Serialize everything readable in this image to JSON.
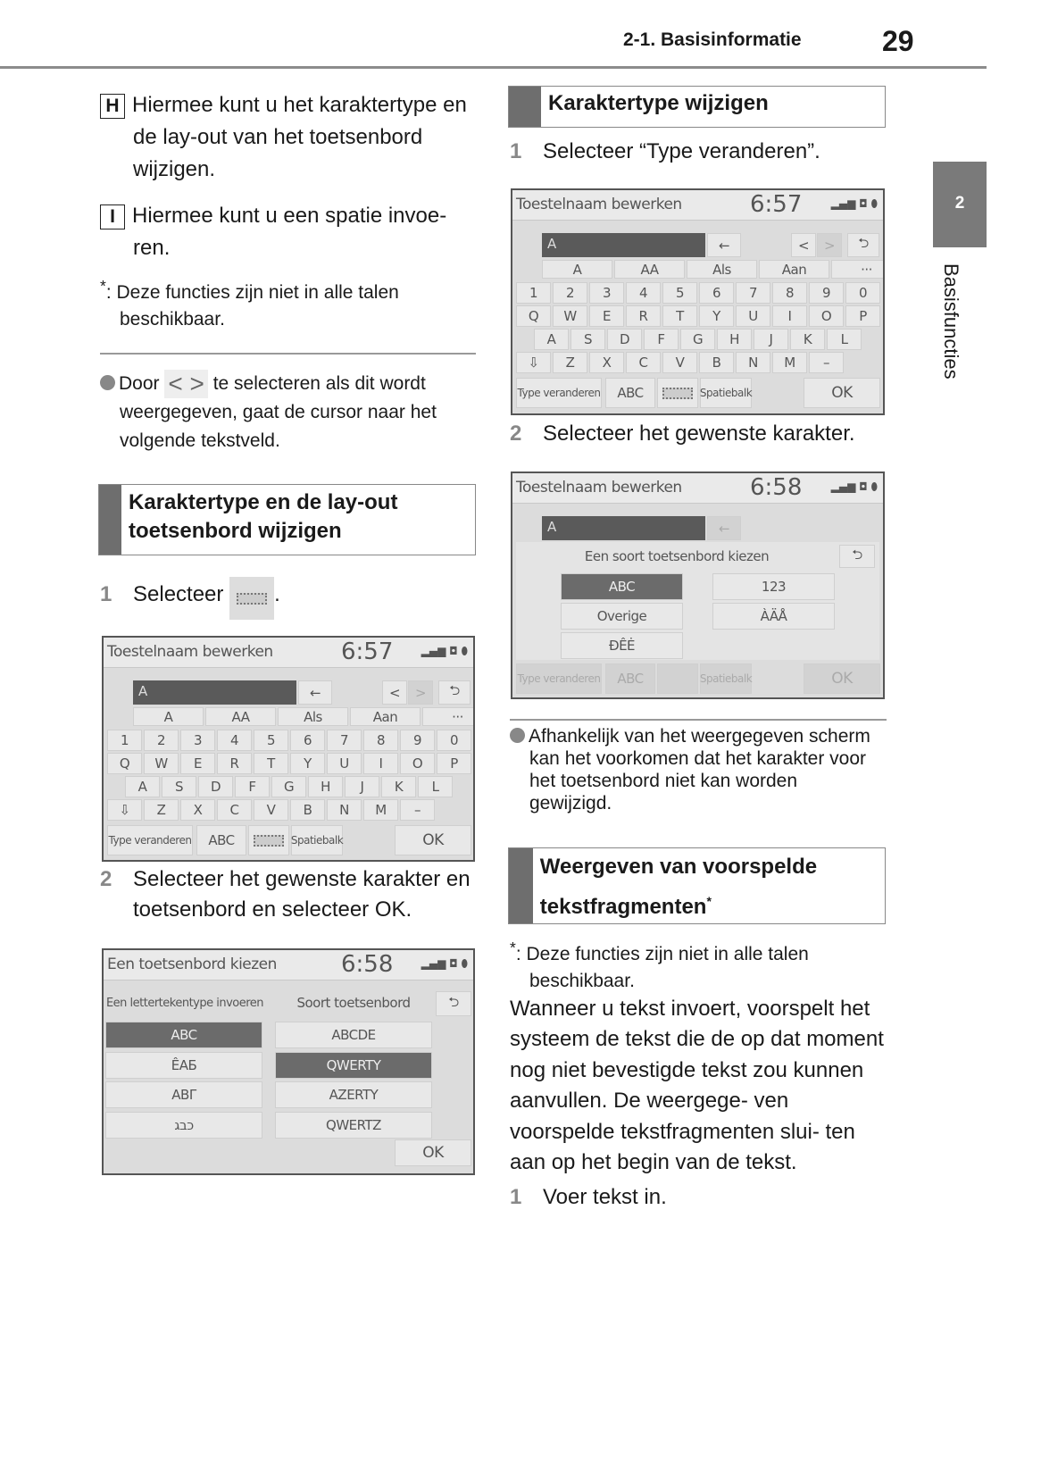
{
  "header": {
    "section": "2-1. Basisinformatie",
    "page_number": "29"
  },
  "side_tab": {
    "number": "2",
    "label": "Basisfuncties"
  },
  "left": {
    "item_h": {
      "key": "H",
      "text": "Hiermee kunt u het karaktertype en de lay-out van het toetsenbord wijzigen."
    },
    "item_i": {
      "key": "I",
      "text": "Hiermee kunt u een spatie invoe- ren."
    },
    "footnote": {
      "mark": "*",
      "text": "Deze functies zijn niet in alle talen beschikbaar."
    },
    "bullet": {
      "before": "Door",
      "after": "te selecteren als dit wordt",
      "rest": "weergegeven, gaat de cursor naar het volgende tekstveld."
    },
    "heading": "Karaktertype en de lay-out toetsenbord wijzigen",
    "step1": {
      "num": "1",
      "text": "Selecteer",
      "end": "."
    },
    "step2": {
      "num": "2",
      "text": "Selecteer het gewenste karakter en toetsenbord en selecteer OK."
    }
  },
  "right": {
    "heading1": "Karaktertype wijzigen",
    "step1": {
      "num": "1",
      "text": "Selecteer “Type veranderen”."
    },
    "step2": {
      "num": "2",
      "text": "Selecteer het gewenste karakter."
    },
    "bullet": "Afhankelijk van het weergegeven scherm kan het voorkomen dat het karakter voor het toetsenbord niet kan worden gewijzigd.",
    "heading2": "Weergeven van voorspelde tekstfragmenten",
    "heading2_mark": "*",
    "footnote": {
      "mark": "*",
      "text": "Deze functies zijn niet in alle talen beschikbaar."
    },
    "paragraph": "Wanneer u tekst invoert, voorspelt het systeem de tekst die de op dat moment nog niet bevestigde tekst zou kunnen aanvullen. De weergege- ven voorspelde tekstfragmenten slui- ten aan op het begin van de tekst.",
    "step3": {
      "num": "1",
      "text": "Voer tekst in."
    }
  },
  "keyboard_screen": {
    "title": "Toestelnaam bewerken",
    "time": "6:57",
    "input": "A",
    "backspace": "←",
    "prev": "<",
    "next": ">",
    "back": "⮌",
    "tabs": [
      "A",
      "AA",
      "Als",
      "Aan",
      "···"
    ],
    "rows": [
      [
        "1",
        "2",
        "3",
        "4",
        "5",
        "6",
        "7",
        "8",
        "9",
        "0"
      ],
      [
        "Q",
        "W",
        "E",
        "R",
        "T",
        "Y",
        "U",
        "I",
        "O",
        "P"
      ],
      [
        "A",
        "S",
        "D",
        "F",
        "G",
        "H",
        "J",
        "K",
        "L"
      ],
      [
        "⇩",
        "Z",
        "X",
        "C",
        "V",
        "B",
        "N",
        "M",
        "–"
      ]
    ],
    "bottom": {
      "type": "Type veranderen",
      "abc": "ABC",
      "space": "Spatiebalk",
      "ok": "OK"
    }
  },
  "type_screen": {
    "title": "Toestelnaam bewerken",
    "time": "6:58",
    "input": "A",
    "dialog_title": "Een soort toetsenbord kiezen",
    "options": [
      "ABC",
      "123",
      "Overige",
      "ÀÄÅ",
      "ĐÊĖ"
    ],
    "selected": "ABC"
  },
  "select_screen": {
    "title": "Een toetsenbord kiezen",
    "time": "6:58",
    "col1_title": "Een lettertekentype invoeren",
    "col2_title": "Soort toetsenbord",
    "col1": [
      "ABC",
      "ÊAБ",
      "ABΓ",
      "כבג"
    ],
    "col2": [
      "ABCDE",
      "QWERTY",
      "AZERTY",
      "QWERTZ"
    ],
    "selected1": "ABC",
    "selected2": "QWERTY",
    "ok": "OK"
  }
}
